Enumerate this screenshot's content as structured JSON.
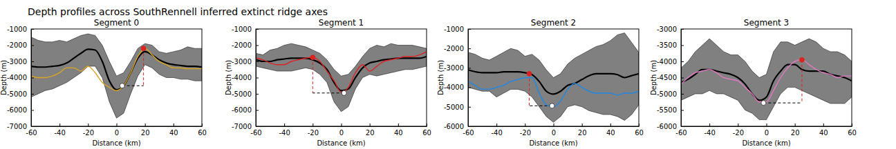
{
  "title": "Depth profiles across SouthRennell inferred extinct ridge axes",
  "chart_data": [
    {
      "type": "line",
      "title": "Segment 0",
      "x_label": "Distance (km)",
      "y_label": "Depth (m)",
      "xlim": [
        -60,
        60
      ],
      "xticks": [
        -60,
        -40,
        -20,
        0,
        20,
        40,
        60
      ],
      "ylim": [
        -7000,
        -1000
      ],
      "yticks": [
        -7000,
        -6000,
        -5000,
        -4000,
        -3000,
        -2000,
        -1000
      ],
      "x": [
        -60,
        -55,
        -50,
        -45,
        -40,
        -35,
        -30,
        -25,
        -20,
        -15,
        -10,
        -5,
        0,
        5,
        10,
        15,
        20,
        25,
        30,
        35,
        40,
        45,
        50,
        55,
        60
      ],
      "series": [
        {
          "type": "area",
          "color": "#808080",
          "upper": [
            -1500,
            -1700,
            -1800,
            -1800,
            -1700,
            -1800,
            -1600,
            -1400,
            -1300,
            -1400,
            -2000,
            -3000,
            -3900,
            -3700,
            -3000,
            -2200,
            -1900,
            -2000,
            -2400,
            -2500,
            -2400,
            -2300,
            -2100,
            -2200,
            -2200
          ],
          "lower": [
            -5200,
            -5000,
            -4800,
            -4700,
            -4500,
            -4300,
            -4000,
            -3700,
            -3300,
            -3300,
            -4000,
            -5500,
            -6500,
            -6200,
            -5000,
            -3900,
            -3200,
            -3400,
            -3800,
            -4000,
            -4000,
            -4100,
            -4100,
            -4200,
            -4200
          ]
        },
        {
          "type": "line",
          "color": "#000000",
          "values": [
            -3300,
            -3350,
            -3350,
            -3300,
            -3250,
            -3100,
            -2800,
            -2500,
            -2250,
            -2300,
            -3000,
            -4200,
            -4750,
            -4500,
            -3700,
            -2800,
            -2400,
            -2600,
            -2900,
            -3100,
            -3200,
            -3250,
            -3300,
            -3300,
            -3350
          ]
        },
        {
          "type": "line",
          "color": "#daa520",
          "values": [
            -3900,
            -4000,
            -4000,
            -3900,
            -3700,
            -3400,
            -3400,
            -3600,
            -3300,
            -3700,
            -4300,
            -4600,
            -4800,
            -4500,
            -3700,
            -2700,
            -2200,
            -2600,
            -3000,
            -3200,
            -3400,
            -3400,
            -3450,
            -3450,
            -3450
          ]
        }
      ],
      "points": [
        {
          "x": 19,
          "y": -2200,
          "color": "#dd2222",
          "marker": "circle"
        },
        {
          "x": 4,
          "y": -4500,
          "color": "#ffffff",
          "marker": "circle"
        }
      ]
    },
    {
      "type": "line",
      "title": "Segment 1",
      "x_label": "Distance (km)",
      "y_label": "Depth (m)",
      "xlim": [
        -60,
        60
      ],
      "xticks": [
        -60,
        -40,
        -20,
        0,
        20,
        40,
        60
      ],
      "ylim": [
        -7000,
        -1000
      ],
      "yticks": [
        -7000,
        -6000,
        -5000,
        -4000,
        -3000,
        -2000,
        -1000
      ],
      "x": [
        -60,
        -55,
        -50,
        -45,
        -40,
        -35,
        -30,
        -25,
        -20,
        -15,
        -10,
        -5,
        0,
        5,
        10,
        15,
        20,
        25,
        30,
        35,
        40,
        45,
        50,
        55,
        60
      ],
      "series": [
        {
          "type": "area",
          "color": "#808080",
          "upper": [
            -2500,
            -2600,
            -2300,
            -2200,
            -2000,
            -1900,
            -2000,
            -2100,
            -2300,
            -2500,
            -2900,
            -3500,
            -3900,
            -3800,
            -3300,
            -2700,
            -2200,
            -2000,
            -2100,
            -1900,
            -2000,
            -2000,
            -2000,
            -2100,
            -2200
          ],
          "lower": [
            -3300,
            -3400,
            -3500,
            -3600,
            -3600,
            -3600,
            -3500,
            -3400,
            -3500,
            -3800,
            -4300,
            -5500,
            -6100,
            -5800,
            -4700,
            -4000,
            -3800,
            -3900,
            -3800,
            -3700,
            -3600,
            -3500,
            -3500,
            -3400,
            -3300
          ]
        },
        {
          "type": "line",
          "color": "#000000",
          "values": [
            -2900,
            -3000,
            -3000,
            -2900,
            -2850,
            -2800,
            -2800,
            -2800,
            -2900,
            -3100,
            -3500,
            -4300,
            -4800,
            -4700,
            -4000,
            -3400,
            -3100,
            -3000,
            -2900,
            -2850,
            -2800,
            -2800,
            -2800,
            -2800,
            -2700
          ]
        },
        {
          "type": "line",
          "color": "#dd2222",
          "values": [
            -2800,
            -2900,
            -3100,
            -3200,
            -3200,
            -3000,
            -2900,
            -2800,
            -2750,
            -3000,
            -3600,
            -4200,
            -4900,
            -4600,
            -3700,
            -3200,
            -3600,
            -3300,
            -3000,
            -2900,
            -2800,
            -2700,
            -2700,
            -2600,
            -2400
          ]
        }
      ],
      "points": [
        {
          "x": -20,
          "y": -2750,
          "color": "#dd2222",
          "marker": "circle"
        },
        {
          "x": 2,
          "y": -4950,
          "color": "#ffffff",
          "marker": "circle"
        }
      ]
    },
    {
      "type": "line",
      "title": "Segment 2",
      "x_label": "Distance (km)",
      "y_label": "Depth (m)",
      "xlim": [
        -60,
        60
      ],
      "xticks": [
        -60,
        -40,
        -20,
        0,
        20,
        40,
        60
      ],
      "ylim": [
        -6000,
        -1000
      ],
      "yticks": [
        -6000,
        -5000,
        -4000,
        -3000,
        -2000,
        -1000
      ],
      "x": [
        -60,
        -55,
        -50,
        -45,
        -40,
        -35,
        -30,
        -25,
        -20,
        -15,
        -10,
        -5,
        0,
        5,
        10,
        15,
        20,
        25,
        30,
        35,
        40,
        45,
        50,
        55,
        60
      ],
      "series": [
        {
          "type": "area",
          "color": "#808080",
          "upper": [
            -2200,
            -2300,
            -2500,
            -2600,
            -2400,
            -2200,
            -2000,
            -2100,
            -2400,
            -2300,
            -2600,
            -3100,
            -3500,
            -3300,
            -2800,
            -2500,
            -2300,
            -2100,
            -1900,
            -1800,
            -1600,
            -1300,
            -1200,
            -1700,
            -2200
          ],
          "lower": [
            -4000,
            -4100,
            -4200,
            -4200,
            -4500,
            -4300,
            -4100,
            -4100,
            -4200,
            -4500,
            -5000,
            -5500,
            -5800,
            -5500,
            -5000,
            -4900,
            -5000,
            -5200,
            -5300,
            -5400,
            -5400,
            -5500,
            -5700,
            -5400,
            -4900
          ]
        },
        {
          "type": "line",
          "color": "#000000",
          "values": [
            -3100,
            -3200,
            -3250,
            -3250,
            -3250,
            -3200,
            -3200,
            -3200,
            -3250,
            -3350,
            -3700,
            -4200,
            -4350,
            -4200,
            -3900,
            -3800,
            -3600,
            -3400,
            -3300,
            -3300,
            -3300,
            -3350,
            -3500,
            -3400,
            -3300
          ]
        },
        {
          "type": "line",
          "color": "#1e88e5",
          "values": [
            -3700,
            -3900,
            -4100,
            -4100,
            -4000,
            -3900,
            -3700,
            -3600,
            -3500,
            -3500,
            -4300,
            -4900,
            -5000,
            -4700,
            -4100,
            -3800,
            -4000,
            -4200,
            -4300,
            -4300,
            -4300,
            -4400,
            -4300,
            -4300,
            -4200
          ]
        }
      ],
      "points": [
        {
          "x": -17,
          "y": -3300,
          "color": "#dd2222",
          "marker": "circle"
        },
        {
          "x": -1,
          "y": -4950,
          "color": "#ffffff",
          "marker": "circle"
        }
      ]
    },
    {
      "type": "line",
      "title": "Segment 3",
      "x_label": "Distance (km)",
      "y_label": "Depth (m)",
      "xlim": [
        -60,
        60
      ],
      "xticks": [
        -60,
        -40,
        -20,
        0,
        20,
        40,
        60
      ],
      "ylim": [
        -6000,
        -3000
      ],
      "yticks": [
        -6000,
        -5500,
        -5000,
        -4500,
        -4000,
        -3500,
        -3000
      ],
      "x": [
        -60,
        -55,
        -50,
        -45,
        -40,
        -35,
        -30,
        -25,
        -20,
        -15,
        -10,
        -5,
        0,
        5,
        10,
        15,
        20,
        25,
        30,
        35,
        40,
        45,
        50,
        55,
        60
      ],
      "series": [
        {
          "type": "area",
          "color": "#808080",
          "upper": [
            -4200,
            -4000,
            -3700,
            -3500,
            -3300,
            -3500,
            -3700,
            -3800,
            -3800,
            -4000,
            -4300,
            -4500,
            -4400,
            -3700,
            -3400,
            -3400,
            -3500,
            -3400,
            -3300,
            -3400,
            -3600,
            -3700,
            -3700,
            -3800,
            -4000
          ],
          "lower": [
            -5200,
            -5100,
            -5000,
            -5000,
            -4900,
            -5000,
            -5000,
            -5100,
            -5200,
            -5500,
            -5600,
            -5800,
            -5800,
            -5400,
            -5000,
            -4800,
            -4800,
            -4900,
            -5000,
            -5100,
            -5200,
            -5300,
            -5300,
            -5300,
            -5100
          ]
        },
        {
          "type": "line",
          "color": "#000000",
          "values": [
            -4650,
            -4550,
            -4400,
            -4250,
            -4250,
            -4300,
            -4350,
            -4400,
            -4500,
            -4700,
            -5000,
            -5200,
            -5100,
            -4600,
            -4300,
            -4100,
            -4100,
            -4250,
            -4300,
            -4300,
            -4300,
            -4400,
            -4450,
            -4500,
            -4600
          ]
        },
        {
          "type": "line",
          "color": "#e377c2",
          "values": [
            -4700,
            -4500,
            -4350,
            -4300,
            -4250,
            -4350,
            -4500,
            -4550,
            -4600,
            -4800,
            -5000,
            -5250,
            -5250,
            -4900,
            -4500,
            -4200,
            -4000,
            -3950,
            -4100,
            -4250,
            -4350,
            -4400,
            -4500,
            -4450,
            -4450
          ]
        }
      ],
      "points": [
        {
          "x": 25,
          "y": -3950,
          "color": "#dd2222",
          "marker": "circle"
        },
        {
          "x": -2,
          "y": -5280,
          "color": "#ffffff",
          "marker": "circle"
        }
      ]
    }
  ]
}
